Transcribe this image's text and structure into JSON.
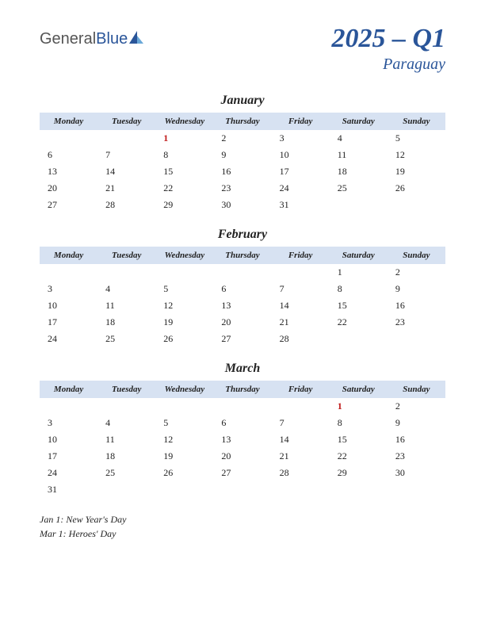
{
  "logo": {
    "part1": "General",
    "part2": "Blue"
  },
  "title": "2025 – Q1",
  "subtitle": "Paraguay",
  "colors": {
    "accent": "#2a5599",
    "header_bg": "#d7e2f2",
    "holiday": "#c01818",
    "text": "#222222",
    "background": "#ffffff"
  },
  "day_headers": [
    "Monday",
    "Tuesday",
    "Wednesday",
    "Thursday",
    "Friday",
    "Saturday",
    "Sunday"
  ],
  "months": [
    {
      "name": "January",
      "weeks": [
        [
          "",
          "",
          "1",
          "2",
          "3",
          "4",
          "5"
        ],
        [
          "6",
          "7",
          "8",
          "9",
          "10",
          "11",
          "12"
        ],
        [
          "13",
          "14",
          "15",
          "16",
          "17",
          "18",
          "19"
        ],
        [
          "20",
          "21",
          "22",
          "23",
          "24",
          "25",
          "26"
        ],
        [
          "27",
          "28",
          "29",
          "30",
          "31",
          "",
          ""
        ]
      ],
      "holidays": [
        "1"
      ]
    },
    {
      "name": "February",
      "weeks": [
        [
          "",
          "",
          "",
          "",
          "",
          "1",
          "2"
        ],
        [
          "3",
          "4",
          "5",
          "6",
          "7",
          "8",
          "9"
        ],
        [
          "10",
          "11",
          "12",
          "13",
          "14",
          "15",
          "16"
        ],
        [
          "17",
          "18",
          "19",
          "20",
          "21",
          "22",
          "23"
        ],
        [
          "24",
          "25",
          "26",
          "27",
          "28",
          "",
          ""
        ]
      ],
      "holidays": []
    },
    {
      "name": "March",
      "weeks": [
        [
          "",
          "",
          "",
          "",
          "",
          "1",
          "2"
        ],
        [
          "3",
          "4",
          "5",
          "6",
          "7",
          "8",
          "9"
        ],
        [
          "10",
          "11",
          "12",
          "13",
          "14",
          "15",
          "16"
        ],
        [
          "17",
          "18",
          "19",
          "20",
          "21",
          "22",
          "23"
        ],
        [
          "24",
          "25",
          "26",
          "27",
          "28",
          "29",
          "30"
        ],
        [
          "31",
          "",
          "",
          "",
          "",
          "",
          ""
        ]
      ],
      "holidays": [
        "1"
      ]
    }
  ],
  "holiday_list": [
    "Jan 1: New Year's Day",
    "Mar 1: Heroes' Day"
  ]
}
